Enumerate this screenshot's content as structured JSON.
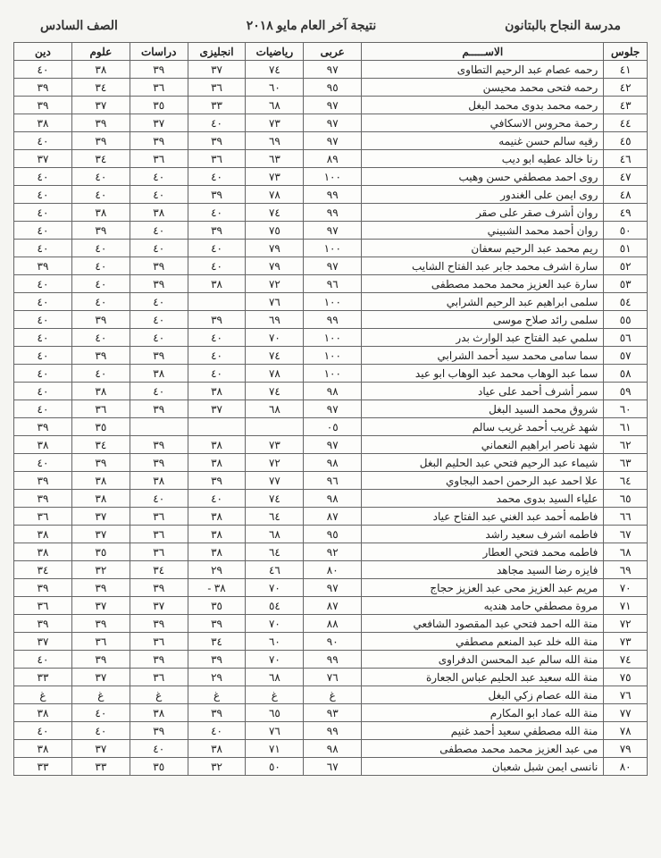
{
  "header": {
    "school": "مدرسة النجاح بالبتانون",
    "title": "نتيجة آخر العام مايو ٢٠١٨",
    "grade": "الصف السادس"
  },
  "columns": [
    "جلوس",
    "الاســـــم",
    "عربى",
    "رياضيات",
    "انجليزى",
    "دراسات",
    "علوم",
    "دين"
  ],
  "rows": [
    {
      "seat": "٤١",
      "name": "رحمه عصام عبد الرحيم التطاوى",
      "ar": "٩٧",
      "ma": "٧٤",
      "en": "٣٧",
      "ss": "٣٩",
      "sc": "٣٨",
      "re": "٤٠"
    },
    {
      "seat": "٤٢",
      "name": "رحمه فتحى محمد محيسن",
      "ar": "٩٥",
      "ma": "٦٠",
      "en": "٣٦",
      "ss": "٣٦",
      "sc": "٣٤",
      "re": "٣٩"
    },
    {
      "seat": "٤٣",
      "name": "رحمه محمد بدوى محمد البغل",
      "ar": "٩٧",
      "ma": "٦٨",
      "en": "٣٣",
      "ss": "٣٥",
      "sc": "٣٧",
      "re": "٣٩"
    },
    {
      "seat": "٤٤",
      "name": "رحمة محروس الاسكافي",
      "ar": "٩٧",
      "ma": "٧٣",
      "en": "٤٠",
      "ss": "٣٧",
      "sc": "٣٩",
      "re": "٣٨"
    },
    {
      "seat": "٤٥",
      "name": "رقيه سالم حسن غنيمه",
      "ar": "٩٧",
      "ma": "٦٩",
      "en": "٣٩",
      "ss": "٣٩",
      "sc": "٣٩",
      "re": "٤٠"
    },
    {
      "seat": "٤٦",
      "name": "رنا خالد عطيه ابو ديب",
      "ar": "٨٩",
      "ma": "٦٣",
      "en": "٣٦",
      "ss": "٣٦",
      "sc": "٣٤",
      "re": "٣٧"
    },
    {
      "seat": "٤٧",
      "name": "روى احمد مصطفي حسن وهيب",
      "ar": "١٠٠",
      "ma": "٧٣",
      "en": "٤٠",
      "ss": "٤٠",
      "sc": "٤٠",
      "re": "٤٠"
    },
    {
      "seat": "٤٨",
      "name": "روى ايمن على الغندور",
      "ar": "٩٩",
      "ma": "٧٨",
      "en": "٣٩",
      "ss": "٤٠",
      "sc": "٤٠",
      "re": "٤٠"
    },
    {
      "seat": "٤٩",
      "name": "روان أشرف صقر على صقر",
      "ar": "٩٩",
      "ma": "٧٤",
      "en": "٤٠",
      "ss": "٣٨",
      "sc": "٣٨",
      "re": "٤٠"
    },
    {
      "seat": "٥٠",
      "name": "روان أحمد محمد الشبيني",
      "ar": "٩٧",
      "ma": "٧٥",
      "en": "٣٩",
      "ss": "٤٠",
      "sc": "٣٩",
      "re": "٤٠"
    },
    {
      "seat": "٥١",
      "name": "ريم محمد عبد الرحيم سعفان",
      "ar": "١٠٠",
      "ma": "٧٩",
      "en": "٤٠",
      "ss": "٤٠",
      "sc": "٤٠",
      "re": "٤٠"
    },
    {
      "seat": "٥٢",
      "name": "سارة اشرف محمد جابر عبد الفتاح الشايب",
      "ar": "٩٧",
      "ma": "٧٩",
      "en": "٤٠",
      "ss": "٣٩",
      "sc": "٤٠",
      "re": "٣٩"
    },
    {
      "seat": "٥٣",
      "name": "سارة عبد العزيز محمد محمد مصطفى",
      "ar": "٩٦",
      "ma": "٧٢",
      "en": "٣٨",
      "ss": "٣٩",
      "sc": "٤٠",
      "re": "٤٠"
    },
    {
      "seat": "٥٤",
      "name": "سلمى ابراهيم عبد الرحيم الشرابي",
      "ar": "١٠٠",
      "ma": "٧٦",
      "en": "",
      "ss": "٤٠",
      "sc": "٤٠",
      "re": "٤٠"
    },
    {
      "seat": "٥٥",
      "name": "سلمى رائد صلاح موسى",
      "ar": "٩٩",
      "ma": "٦٩",
      "en": "٣٩",
      "ss": "٤٠",
      "sc": "٣٩",
      "re": "٤٠"
    },
    {
      "seat": "٥٦",
      "name": "سلمي عبد الفتاح عبد الوارث بدر",
      "ar": "١٠٠",
      "ma": "٧٠",
      "en": "٤٠",
      "ss": "٤٠",
      "sc": "٤٠",
      "re": "٤٠"
    },
    {
      "seat": "٥٧",
      "name": "سما سامى محمد سيد أحمد الشرابي",
      "ar": "١٠٠",
      "ma": "٧٤",
      "en": "٤٠",
      "ss": "٣٩",
      "sc": "٣٩",
      "re": "٤٠"
    },
    {
      "seat": "٥٨",
      "name": "سما عبد الوهاب محمد عبد الوهاب ابو عيد",
      "ar": "١٠٠",
      "ma": "٧٨",
      "en": "٤٠",
      "ss": "٣٨",
      "sc": "٤٠",
      "re": "٤٠"
    },
    {
      "seat": "٥٩",
      "name": "سمر أشرف أحمد على عياد",
      "ar": "٩٨",
      "ma": "٧٤",
      "en": "٣٨",
      "ss": "٤٠",
      "sc": "٣٨",
      "re": "٤٠"
    },
    {
      "seat": "٦٠",
      "name": "شروق محمد السيد البغل",
      "ar": "٩٧",
      "ma": "٦٨",
      "en": "٣٧",
      "ss": "٣٩",
      "sc": "٣٦",
      "re": "٤٠"
    },
    {
      "seat": "٦١",
      "name": "شهد غريب أحمد غريب سالم",
      "ar": "٠٥",
      "ma": "",
      "en": "",
      "ss": "",
      "sc": "٣٥",
      "re": "٣٩"
    },
    {
      "seat": "٦٢",
      "name": "شهد ناصر ابراهيم النعماني",
      "ar": "٩٧",
      "ma": "٧٣",
      "en": "٣٨",
      "ss": "٣٩",
      "sc": "٣٤",
      "re": "٣٨"
    },
    {
      "seat": "٦٣",
      "name": "شيماء عبد الرحيم فتحي عبد الحليم البغل",
      "ar": "٩٨",
      "ma": "٧٢",
      "en": "٣٨",
      "ss": "٣٩",
      "sc": "٣٩",
      "re": "٤٠"
    },
    {
      "seat": "٦٤",
      "name": "علا احمد عبد الرحمن احمد البجاوي",
      "ar": "٩٦",
      "ma": "٧٧",
      "en": "٣٩",
      "ss": "٣٨",
      "sc": "٣٨",
      "re": "٣٩"
    },
    {
      "seat": "٦٥",
      "name": "علياء السيد بدوى محمد",
      "ar": "٩٨",
      "ma": "٧٤",
      "en": "٤٠",
      "ss": "٤٠",
      "sc": "٣٨",
      "re": "٣٩"
    },
    {
      "seat": "٦٦",
      "name": "فاطمه أحمد عبد الغني عبد الفتاح عياد",
      "ar": "٨٧",
      "ma": "٦٤",
      "en": "٣٨",
      "ss": "٣٦",
      "sc": "٣٧",
      "re": "٣٦"
    },
    {
      "seat": "٦٧",
      "name": "فاطمه اشرف سعيد راشد",
      "ar": "٩٥",
      "ma": "٦٨",
      "en": "٣٨",
      "ss": "٣٦",
      "sc": "٣٧",
      "re": "٣٨"
    },
    {
      "seat": "٦٨",
      "name": "فاطمه محمد فتحي العطار",
      "ar": "٩٢",
      "ma": "٦٤",
      "en": "٣٨",
      "ss": "٣٦",
      "sc": "٣٥",
      "re": "٣٨"
    },
    {
      "seat": "٦٩",
      "name": "فايزه رضا السيد مجاهد",
      "ar": "٨٠",
      "ma": "٤٦",
      "en": "٢٩",
      "ss": "٣٤",
      "sc": "٣٢",
      "re": "٣٤"
    },
    {
      "seat": "٧٠",
      "name": "مريم عبد العزيز محى عبد العزيز حجاج",
      "ar": "٩٧",
      "ma": "٧٠",
      "en": "٣٨ -",
      "ss": "٣٩",
      "sc": "٣٩",
      "re": "٣٩"
    },
    {
      "seat": "٧١",
      "name": "مروة مصطفي حامد هنديه",
      "ar": "٨٧",
      "ma": "٥٤",
      "en": "٣٥",
      "ss": "٣٧",
      "sc": "٣٧",
      "re": "٣٦"
    },
    {
      "seat": "٧٢",
      "name": "منة الله احمد فتحي عبد المقصود الشافعي",
      "ar": "٨٨",
      "ma": "٧٠",
      "en": "٣٩",
      "ss": "٣٩",
      "sc": "٣٩",
      "re": "٣٩"
    },
    {
      "seat": "٧٣",
      "name": "منة الله خلد عبد المنعم مصطفي",
      "ar": "٩٠",
      "ma": "٦٠",
      "en": "٣٤",
      "ss": "٣٦",
      "sc": "٣٦",
      "re": "٣٧"
    },
    {
      "seat": "٧٤",
      "name": "منة الله سالم عبد المحسن الدفراوى",
      "ar": "٩٩",
      "ma": "٧٠",
      "en": "٣٩",
      "ss": "٣٩",
      "sc": "٣٩",
      "re": "٤٠"
    },
    {
      "seat": "٧٥",
      "name": "منة الله سعيد عبد الحليم عباس الجعارة",
      "ar": "٧٦",
      "ma": "٦٨",
      "en": "٢٩",
      "ss": "٣٦",
      "sc": "٣٧",
      "re": "٣٣"
    },
    {
      "seat": "٧٦",
      "name": "منة الله عصام زكي البغل",
      "ar": "غ",
      "ma": "غ",
      "en": "غ",
      "ss": "غ",
      "sc": "غ",
      "re": "غ"
    },
    {
      "seat": "٧٧",
      "name": "منة الله عماد ابو المكارم",
      "ar": "٩٣",
      "ma": "٦٥",
      "en": "٣٩",
      "ss": "٣٨",
      "sc": "٤٠",
      "re": "٣٨"
    },
    {
      "seat": "٧٨",
      "name": "منة الله مصطفي سعيد أحمد غنيم",
      "ar": "٩٩",
      "ma": "٧٦",
      "en": "٤٠",
      "ss": "٣٩",
      "sc": "٤٠",
      "re": "٤٠"
    },
    {
      "seat": "٧٩",
      "name": "مى عبد العزيز محمد محمد مصطفى",
      "ar": "٩٨",
      "ma": "٧١",
      "en": "٣٨",
      "ss": "٤٠",
      "sc": "٣٧",
      "re": "٣٨"
    },
    {
      "seat": "٨٠",
      "name": "نانسى ايمن شبل شعبان",
      "ar": "٦٧",
      "ma": "٥٠",
      "en": "٣٢",
      "ss": "٣٥",
      "sc": "٣٣",
      "re": "٣٣"
    }
  ]
}
